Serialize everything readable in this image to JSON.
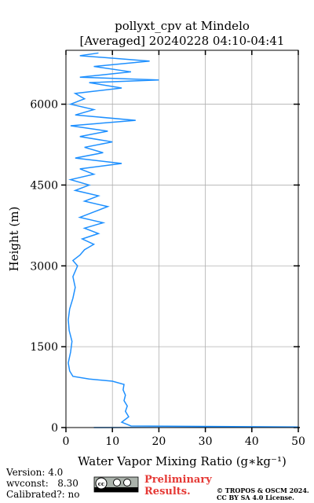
{
  "chart_data": {
    "type": "line",
    "title": [
      "pollyxt_cpv at Mindelo",
      "[Averaged] 20240228 04:10-04:41"
    ],
    "x_label": "Water Vapor Mixing Ratio (g∗kg⁻¹)",
    "y_label": "Height (m)",
    "color": "#1e90ff",
    "x": [
      6,
      50,
      14,
      12,
      13.5,
      12.8,
      13.2,
      12.5,
      12.8,
      12.3,
      12.5,
      10,
      5,
      1.5,
      0.8,
      0.5,
      1,
      1.3,
      0.7,
      0.5,
      0.8,
      1.5,
      2,
      1.5,
      2.5,
      1.5,
      3,
      4,
      6,
      3.5,
      7,
      4,
      8,
      3,
      6,
      9,
      4,
      7,
      2,
      5,
      1,
      6,
      3,
      12,
      2,
      8,
      4,
      10,
      3,
      9,
      1,
      15,
      2,
      6,
      1,
      4,
      2,
      12,
      5,
      20,
      3,
      14,
      6,
      18,
      3,
      7
    ],
    "values": [
      0,
      10,
      30,
      100,
      200,
      300,
      400,
      500,
      600,
      700,
      800,
      860,
      900,
      950,
      1050,
      1200,
      1400,
      1600,
      1800,
      2000,
      2200,
      2400,
      2600,
      2800,
      3000,
      3100,
      3200,
      3300,
      3400,
      3500,
      3600,
      3700,
      3800,
      3900,
      4000,
      4100,
      4200,
      4300,
      4400,
      4500,
      4600,
      4700,
      4800,
      4900,
      5000,
      5100,
      5200,
      5300,
      5400,
      5500,
      5600,
      5700,
      5800,
      5900,
      6000,
      6100,
      6200,
      6300,
      6400,
      6450,
      6500,
      6600,
      6700,
      6800,
      6900,
      6950
    ],
    "xlim": [
      0,
      50
    ],
    "xticks": [
      0,
      10,
      20,
      30,
      40,
      50
    ],
    "ylim": [
      0,
      7000
    ],
    "yticks": [
      0,
      1500,
      3000,
      4500,
      6000
    ],
    "grid": true
  },
  "footer": {
    "info": [
      "Version: 4.0",
      "wvconst:   8.30",
      "Calibrated?: no"
    ],
    "preliminary": [
      "Preliminary",
      "Results."
    ],
    "copyright": [
      "© TROPOS & OSCM 2024.",
      "CC BY SA 4.0 License."
    ]
  }
}
